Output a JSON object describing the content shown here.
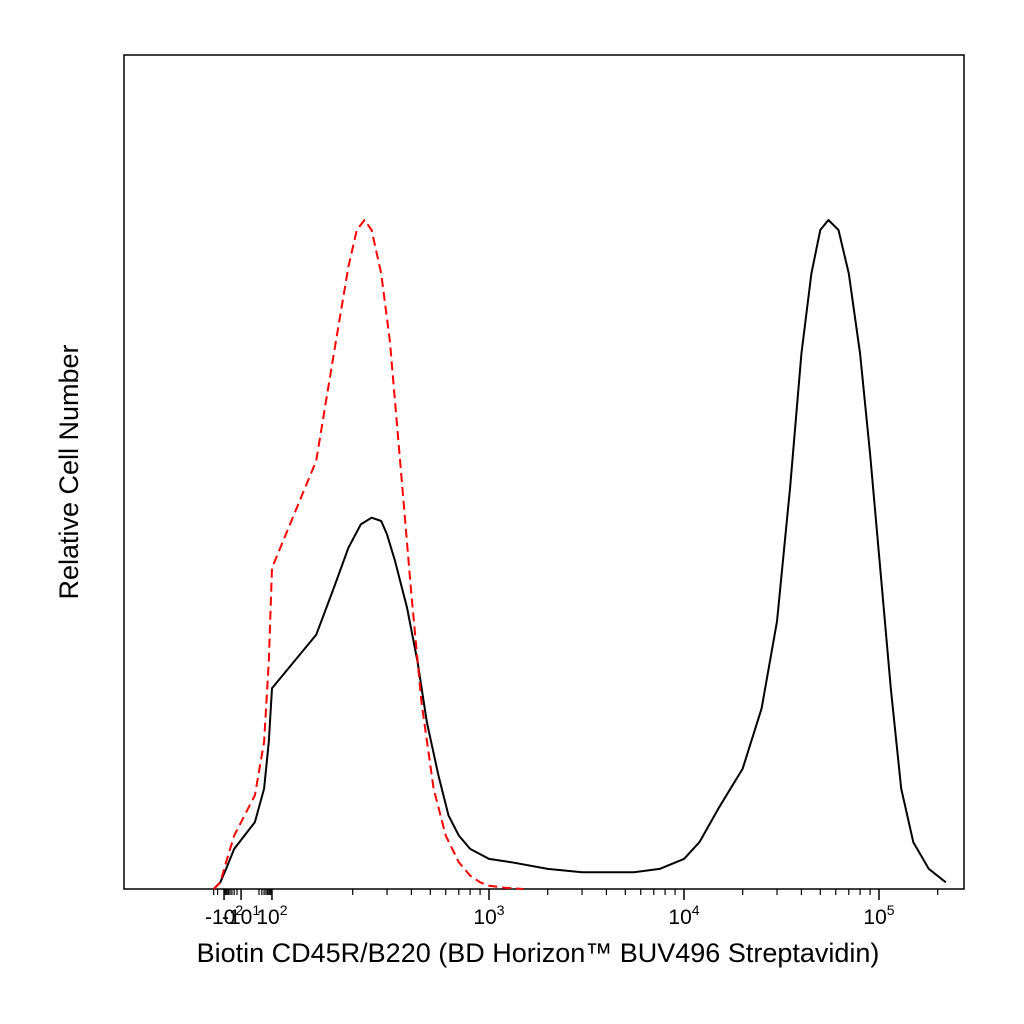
{
  "chart_data": {
    "type": "line",
    "title": "",
    "xlabel": "Biotin CD45R/B220 (BD Horizon™ BUV496 Streptavidin)",
    "ylabel": "Relative Cell Number",
    "xscale": "biexponential (logicle)",
    "xlim": [
      -300,
      250000
    ],
    "ylim": [
      0,
      1
    ],
    "grid": false,
    "legend": "none",
    "x_ticks": [
      {
        "base": "-10",
        "exp": "2",
        "value": -100
      },
      {
        "base": "-10",
        "exp": "1",
        "value": -10
      },
      {
        "base": "10",
        "exp": "2",
        "value": 100
      },
      {
        "base": "10",
        "exp": "3",
        "value": 1000
      },
      {
        "base": "10",
        "exp": "4",
        "value": 10000
      },
      {
        "base": "10",
        "exp": "5",
        "value": 100000
      }
    ],
    "series": [
      {
        "name": "",
        "color": "#000000",
        "style": "solid",
        "x": [
          -300,
          -150,
          -80,
          -30,
          10,
          40,
          70,
          100,
          130,
          160,
          190,
          220,
          250,
          280,
          300,
          330,
          380,
          430,
          480,
          550,
          620,
          700,
          800,
          1000,
          1300,
          2000,
          3000,
          4000,
          5500,
          7500,
          10000,
          12000,
          15000,
          20000,
          25000,
          30000,
          35000,
          40000,
          45000,
          50000,
          55000,
          62000,
          70000,
          80000,
          90000,
          100000,
          115000,
          130000,
          150000,
          180000,
          220000
        ],
        "y": [
          0,
          0.01,
          0.03,
          0.06,
          0.1,
          0.15,
          0.22,
          0.3,
          0.38,
          0.45,
          0.51,
          0.545,
          0.555,
          0.55,
          0.53,
          0.49,
          0.42,
          0.34,
          0.25,
          0.17,
          0.11,
          0.08,
          0.06,
          0.045,
          0.04,
          0.03,
          0.025,
          0.025,
          0.025,
          0.03,
          0.045,
          0.07,
          0.12,
          0.18,
          0.27,
          0.4,
          0.6,
          0.8,
          0.92,
          0.985,
          1.0,
          0.985,
          0.92,
          0.8,
          0.65,
          0.5,
          0.3,
          0.15,
          0.07,
          0.03,
          0.01
        ]
      },
      {
        "name": "",
        "color": "#ff0000",
        "style": "dashed",
        "x": [
          -300,
          -150,
          -80,
          -30,
          10,
          40,
          70,
          100,
          130,
          160,
          190,
          210,
          230,
          250,
          280,
          310,
          350,
          400,
          450,
          520,
          600,
          700,
          800,
          900,
          1000,
          1200,
          1500
        ],
        "y": [
          0,
          0.01,
          0.04,
          0.08,
          0.14,
          0.22,
          0.34,
          0.48,
          0.64,
          0.8,
          0.93,
          0.985,
          1.0,
          0.985,
          0.92,
          0.82,
          0.64,
          0.44,
          0.28,
          0.15,
          0.08,
          0.04,
          0.02,
          0.01,
          0.005,
          0.002,
          0
        ]
      }
    ]
  }
}
